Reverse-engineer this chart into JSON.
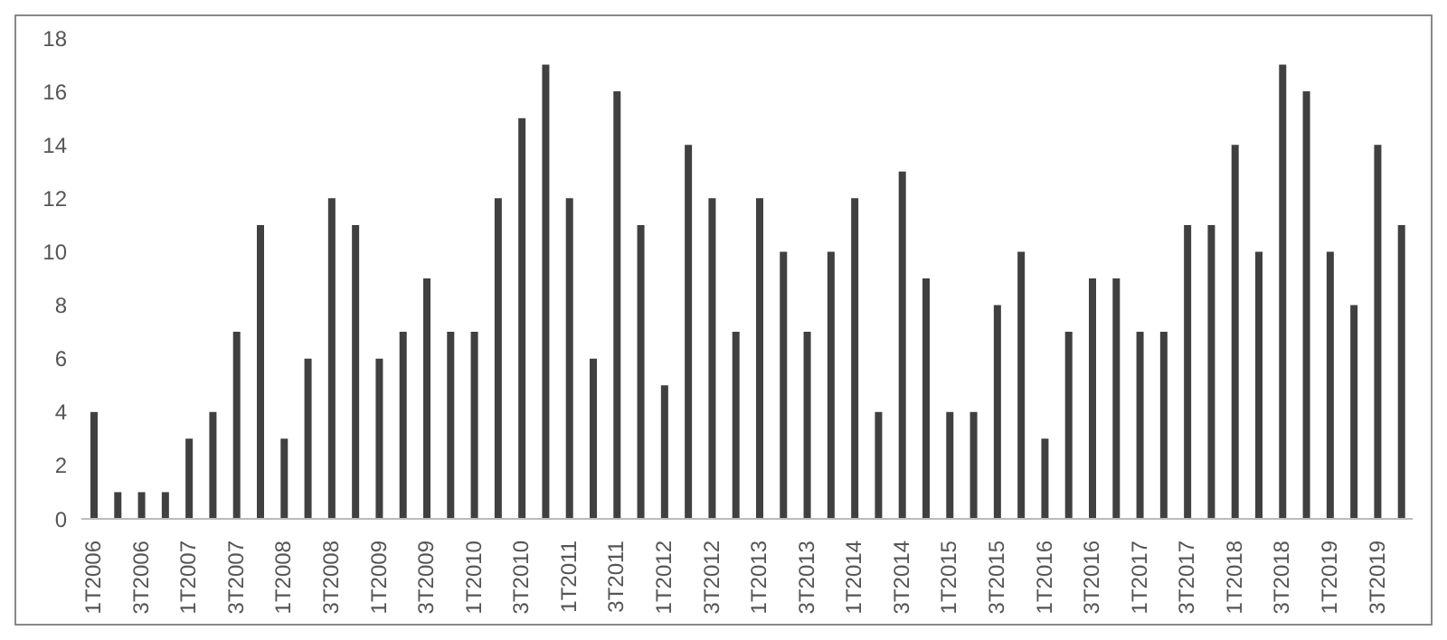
{
  "chart_data": {
    "type": "bar",
    "categories": [
      "1T2006",
      null,
      "3T2006",
      null,
      "1T2007",
      null,
      "3T2007",
      null,
      "1T2008",
      null,
      "3T2008",
      null,
      "1T2009",
      null,
      "3T2009",
      null,
      "1T2010",
      null,
      "3T2010",
      null,
      "1T2011",
      null,
      "3T2011",
      null,
      "1T2012",
      null,
      "3T2012",
      null,
      "1T2013",
      null,
      "3T2013",
      null,
      "1T2014",
      null,
      "3T2014",
      null,
      "1T2015",
      null,
      "3T2015",
      null,
      "1T2016",
      null,
      "3T2016",
      null,
      "1T2017",
      null,
      "3T2017",
      null,
      "1T2018",
      null,
      "3T2018",
      null,
      "1T2019",
      null,
      "3T2019",
      null
    ],
    "values": [
      4,
      1,
      1,
      1,
      3,
      4,
      7,
      11,
      3,
      6,
      12,
      11,
      6,
      7,
      9,
      7,
      7,
      12,
      15,
      17,
      12,
      6,
      16,
      11,
      5,
      14,
      12,
      7,
      12,
      10,
      7,
      10,
      12,
      4,
      13,
      9,
      4,
      4,
      8,
      10,
      3,
      7,
      9,
      9,
      7,
      7,
      11,
      11,
      14,
      10,
      17,
      16,
      10,
      8,
      14,
      11
    ],
    "color": "#404040",
    "ylim": [
      0,
      18
    ],
    "yticks": [
      0,
      2,
      4,
      6,
      8,
      10,
      12,
      14,
      16,
      18
    ],
    "grid": false,
    "legend": false
  }
}
